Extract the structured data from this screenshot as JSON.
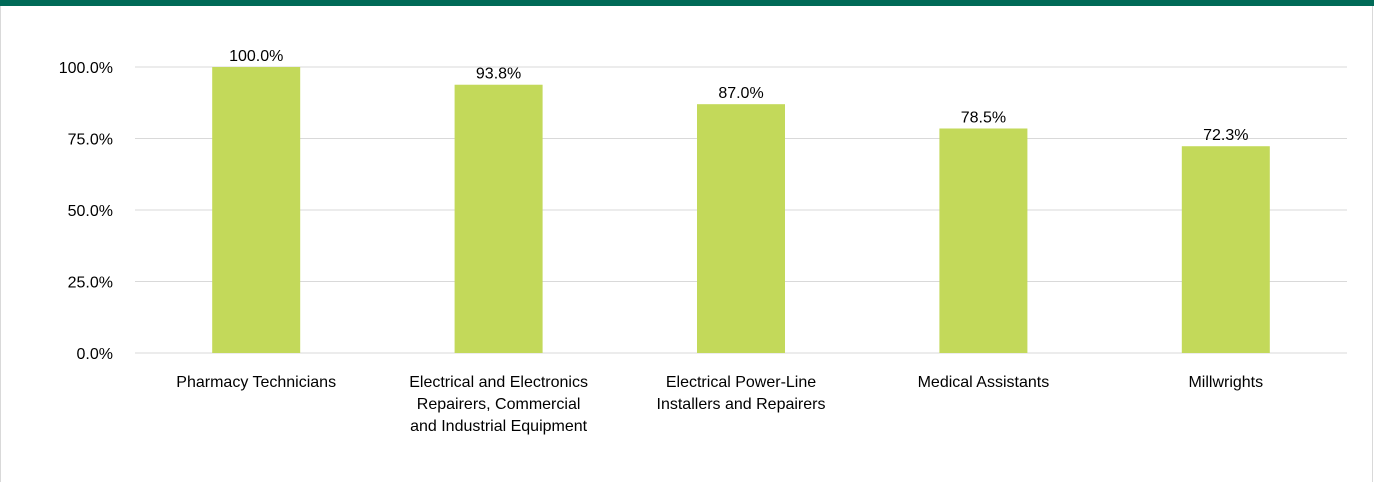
{
  "colors": {
    "top_bar": "#006a57",
    "bar_fill": "#c3d95a",
    "gridline": "#d9d9d9",
    "text": "#000000"
  },
  "chart_data": {
    "type": "bar",
    "categories": [
      [
        "Pharmacy Technicians"
      ],
      [
        "Electrical and Electronics",
        "Repairers, Commercial",
        "and Industrial Equipment"
      ],
      [
        "Electrical Power-Line",
        "Installers and Repairers"
      ],
      [
        "Medical Assistants"
      ],
      [
        "Millwrights"
      ]
    ],
    "values": [
      100.0,
      93.8,
      87.0,
      78.5,
      72.3
    ],
    "data_labels": [
      "100.0%",
      "93.8%",
      "87.0%",
      "78.5%",
      "72.3%"
    ],
    "yticks": [
      0,
      25,
      50,
      75,
      100
    ],
    "ytick_labels": [
      "0.0%",
      "25.0%",
      "50.0%",
      "75.0%",
      "100.0%"
    ],
    "ylim": [
      0,
      100
    ],
    "grid": true,
    "legend": "none"
  }
}
